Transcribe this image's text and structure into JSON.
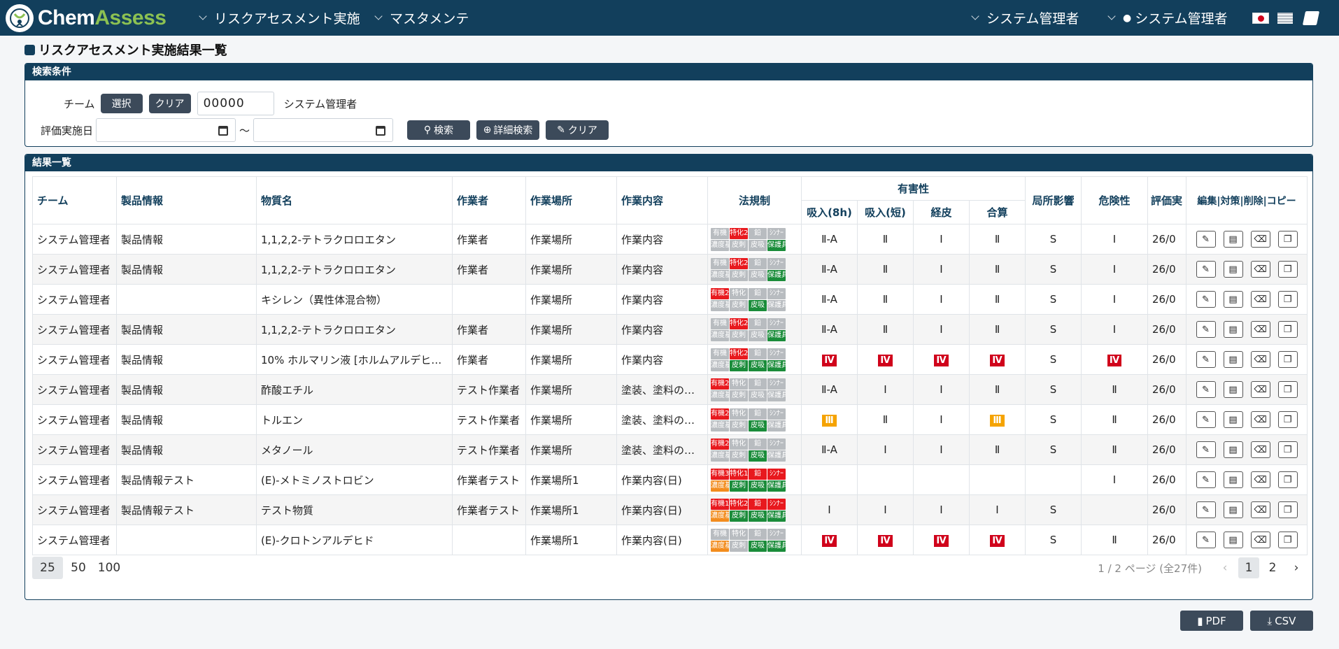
{
  "app": {
    "logo_chem": "Chem",
    "logo_assess": "Assess"
  },
  "nav": {
    "menu1": "リスクアセスメント実施",
    "menu2": "マスタメンテ",
    "user1": "システム管理者",
    "user2": "システム管理者"
  },
  "page": {
    "title": "リスクアセスメント実施結果一覧"
  },
  "search": {
    "header": "検索条件",
    "team_label": "チーム",
    "select_btn": "選択",
    "clear_btn": "クリア",
    "team_code": "00000",
    "team_name": "システム管理者",
    "date_label": "評価実施日",
    "tilde": "〜",
    "search_btn": "検索",
    "detail_btn": "詳細検索",
    "clear2_btn": "クリア"
  },
  "results": {
    "header": "結果一覧",
    "columns": {
      "team": "チーム",
      "product": "製品情報",
      "substance": "物質名",
      "worker": "作業者",
      "place": "作業場所",
      "content": "作業内容",
      "law": "法規制",
      "harm": "有害性",
      "inhale8h": "吸入(8h)",
      "inhaleshort": "吸入(短)",
      "skin": "経皮",
      "total": "合算",
      "local": "局所影響",
      "danger": "危険性",
      "date": "評価実",
      "actions": "編集|対策|削除|コピー"
    },
    "rows": [
      {
        "team": "システム管理者",
        "product": "製品情報",
        "substance": "1,1,2,2-テトラクロロエタン",
        "worker": "作業者",
        "place": "作業場所",
        "content": "作業内容",
        "b": [
          "g:有機",
          "r:特化2",
          "g:鉛",
          "g:ｼﾝﾅｰ",
          "g:濃度基",
          "g:皮刺",
          "g:皮吸",
          "gr:保護具"
        ],
        "i8": "Ⅱ-A",
        "is": "Ⅱ",
        "sk": "Ⅰ",
        "tt": "Ⅱ",
        "lc": "S",
        "dg": "Ⅰ",
        "dt": "26/0"
      },
      {
        "team": "システム管理者",
        "product": "製品情報",
        "substance": "1,1,2,2-テトラクロロエタン",
        "worker": "作業者",
        "place": "作業場所",
        "content": "作業内容",
        "b": [
          "g:有機",
          "r:特化2",
          "g:鉛",
          "g:ｼﾝﾅｰ",
          "g:濃度基",
          "g:皮刺",
          "g:皮吸",
          "gr:保護具"
        ],
        "i8": "Ⅱ-A",
        "is": "Ⅱ",
        "sk": "Ⅰ",
        "tt": "Ⅱ",
        "lc": "S",
        "dg": "Ⅰ",
        "dt": "26/0"
      },
      {
        "team": "システム管理者",
        "product": "",
        "substance": "キシレン（異性体混合物）",
        "worker": "",
        "place": "作業場所",
        "content": "作業内容",
        "b": [
          "r:有機2",
          "g:特化",
          "g:鉛",
          "g:ｼﾝﾅｰ",
          "g:濃度基",
          "g:皮刺",
          "gr:皮吸",
          "g:保護具"
        ],
        "i8": "Ⅱ-A",
        "is": "Ⅱ",
        "sk": "Ⅰ",
        "tt": "Ⅱ",
        "lc": "S",
        "dg": "Ⅰ",
        "dt": "26/0"
      },
      {
        "team": "システム管理者",
        "product": "製品情報",
        "substance": "1,1,2,2-テトラクロロエタン",
        "worker": "作業者",
        "place": "作業場所",
        "content": "作業内容",
        "b": [
          "g:有機",
          "r:特化2",
          "g:鉛",
          "g:ｼﾝﾅｰ",
          "g:濃度基",
          "g:皮刺",
          "g:皮吸",
          "gr:保護具"
        ],
        "i8": "Ⅱ-A",
        "is": "Ⅱ",
        "sk": "Ⅰ",
        "tt": "Ⅱ",
        "lc": "S",
        "dg": "Ⅰ",
        "dt": "26/0"
      },
      {
        "team": "システム管理者",
        "product": "製品情報",
        "substance": "10% ホルマリン液 [ホルムアルデヒド…",
        "worker": "作業者",
        "place": "作業場所",
        "content": "作業内容",
        "b": [
          "g:有機",
          "r:特化2",
          "g:鉛",
          "g:ｼﾝﾅｰ",
          "g:濃度基",
          "gr:皮刺",
          "gr:皮吸",
          "gr:保護具"
        ],
        "i8": "!Ⅳ",
        "is": "!Ⅳ",
        "sk": "!Ⅳ",
        "tt": "!Ⅳ",
        "lc": "S",
        "dg": "!Ⅳ",
        "dt": "26/0"
      },
      {
        "team": "システム管理者",
        "product": "製品情報",
        "substance": "酢酸エチル",
        "worker": "テスト作業者",
        "place": "作業場所",
        "content": "塗装、塗料の洗浄",
        "b": [
          "r:有機2",
          "g:特化",
          "g:鉛",
          "g:ｼﾝﾅｰ",
          "g:濃度基",
          "g:皮刺",
          "g:皮吸",
          "g:保護具"
        ],
        "i8": "Ⅱ-A",
        "is": "Ⅰ",
        "sk": "Ⅰ",
        "tt": "Ⅱ",
        "lc": "S",
        "dg": "Ⅱ",
        "dt": "26/0"
      },
      {
        "team": "システム管理者",
        "product": "製品情報",
        "substance": "トルエン",
        "worker": "テスト作業者",
        "place": "作業場所",
        "content": "塗装、塗料の洗浄",
        "b": [
          "r:有機2",
          "g:特化",
          "g:鉛",
          "g:ｼﾝﾅｰ",
          "g:濃度基",
          "g:皮刺",
          "gr:皮吸",
          "g:保護具"
        ],
        "i8": "?Ⅲ",
        "is": "Ⅱ",
        "sk": "Ⅰ",
        "tt": "?Ⅲ",
        "lc": "S",
        "dg": "Ⅱ",
        "dt": "26/0"
      },
      {
        "team": "システム管理者",
        "product": "製品情報",
        "substance": "メタノール",
        "worker": "テスト作業者",
        "place": "作業場所",
        "content": "塗装、塗料の洗浄",
        "b": [
          "r:有機2",
          "g:特化",
          "g:鉛",
          "g:ｼﾝﾅｰ",
          "g:濃度基",
          "g:皮刺",
          "gr:皮吸",
          "g:保護具"
        ],
        "i8": "Ⅱ-A",
        "is": "Ⅰ",
        "sk": "Ⅰ",
        "tt": "Ⅱ",
        "lc": "S",
        "dg": "Ⅱ",
        "dt": "26/0"
      },
      {
        "team": "システム管理者",
        "product": "製品情報テスト",
        "substance": "(E)-メトミノストロビン",
        "worker": "作業者テスト",
        "place": "作業場所1",
        "content": "作業内容(日)",
        "b": [
          "r:有機3",
          "r:特化1",
          "r:鉛",
          "r:ｼﾝﾅｰ",
          "o:濃度基",
          "gr:皮刺",
          "gr:皮吸",
          "gr:保護具"
        ],
        "i8": "",
        "is": "",
        "sk": "",
        "tt": "",
        "lc": "",
        "dg": "Ⅰ",
        "dt": "26/0"
      },
      {
        "team": "システム管理者",
        "product": "製品情報テスト",
        "substance": "テスト物質",
        "worker": "作業者テスト",
        "place": "作業場所1",
        "content": "作業内容(日)",
        "b": [
          "r:有機1",
          "r:特化2",
          "r:鉛",
          "r:ｼﾝﾅｰ",
          "o:濃度基",
          "gr:皮刺",
          "gr:皮吸",
          "gr:保護具"
        ],
        "i8": "Ⅰ",
        "is": "Ⅰ",
        "sk": "Ⅰ",
        "tt": "Ⅰ",
        "lc": "S",
        "dg": "",
        "dt": "26/0"
      },
      {
        "team": "システム管理者",
        "product": "",
        "substance": "(E)-クロトンアルデヒド",
        "worker": "",
        "place": "作業場所1",
        "content": "作業内容(日)",
        "b": [
          "g:有機",
          "g:特化",
          "g:鉛",
          "g:ｼﾝﾅｰ",
          "o:濃度基",
          "g:皮刺",
          "gr:皮吸",
          "gr:保護具"
        ],
        "i8": "!Ⅳ",
        "is": "!Ⅳ",
        "sk": "!Ⅳ",
        "tt": "!Ⅳ",
        "lc": "S",
        "dg": "Ⅱ",
        "dt": "26/0"
      }
    ]
  },
  "pager": {
    "sizes": [
      "25",
      "50",
      "100"
    ],
    "info": "1 / 2 ページ (全27件)",
    "pages": [
      "1",
      "2"
    ]
  },
  "export": {
    "pdf": "PDF",
    "csv": "CSV"
  }
}
